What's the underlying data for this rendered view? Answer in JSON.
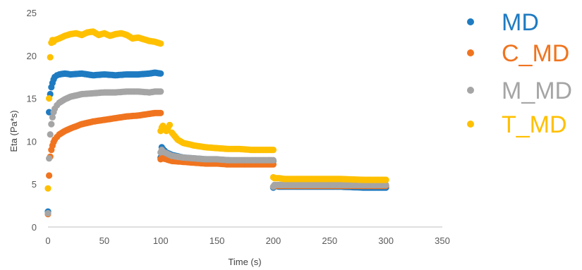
{
  "chart_data": {
    "type": "scatter",
    "title": "",
    "xlabel": "Time (s)",
    "ylabel": "Eta (Pa*s)",
    "xlim": [
      0,
      350
    ],
    "ylim": [
      0,
      25
    ],
    "xticks": [
      0,
      50,
      100,
      150,
      200,
      250,
      300,
      350
    ],
    "yticks": [
      0,
      5,
      10,
      15,
      20,
      25
    ],
    "x_tick_labels": [
      "0",
      "50",
      "100",
      "150",
      "200",
      "250",
      "300",
      "350"
    ],
    "y_tick_labels": [
      "0",
      "5",
      "10",
      "15",
      "20",
      "25"
    ],
    "grid": false,
    "legend_position": "right",
    "series": [
      {
        "name": "MD",
        "color": "#1F7BC1",
        "x": [
          0,
          1,
          2,
          3,
          4,
          5,
          6,
          8,
          10,
          15,
          20,
          30,
          40,
          50,
          60,
          70,
          80,
          90,
          95,
          100,
          100,
          101,
          102,
          105,
          110,
          120,
          130,
          140,
          150,
          160,
          170,
          180,
          190,
          200,
          200,
          201,
          205,
          210,
          220,
          240,
          260,
          280,
          300
        ],
        "y": [
          1.8,
          13.4,
          15.5,
          16.3,
          16.8,
          17.2,
          17.5,
          17.7,
          17.8,
          17.9,
          17.8,
          17.9,
          17.7,
          17.8,
          17.7,
          17.8,
          17.8,
          17.9,
          18.0,
          17.9,
          8.1,
          9.3,
          9.1,
          8.7,
          8.4,
          8.1,
          8.0,
          7.9,
          7.8,
          7.8,
          7.7,
          7.7,
          7.7,
          7.7,
          4.6,
          4.8,
          4.7,
          4.7,
          4.7,
          4.7,
          4.7,
          4.6,
          4.6
        ]
      },
      {
        "name": "C_MD",
        "color": "#F0741F",
        "x": [
          0,
          1,
          2,
          3,
          4,
          5,
          6,
          8,
          10,
          15,
          20,
          30,
          40,
          50,
          60,
          70,
          80,
          90,
          95,
          100,
          100,
          101,
          102,
          105,
          110,
          120,
          130,
          140,
          150,
          160,
          170,
          180,
          190,
          200,
          200,
          201,
          205,
          210,
          220,
          240,
          260,
          280,
          300
        ],
        "y": [
          1.5,
          6.0,
          8.2,
          9.0,
          9.5,
          9.9,
          10.2,
          10.5,
          10.8,
          11.2,
          11.5,
          12.0,
          12.3,
          12.5,
          12.7,
          12.9,
          13.0,
          13.2,
          13.3,
          13.3,
          7.9,
          8.1,
          8.0,
          7.9,
          7.7,
          7.6,
          7.5,
          7.4,
          7.4,
          7.3,
          7.3,
          7.3,
          7.3,
          7.3,
          4.7,
          4.8,
          4.8,
          4.8,
          4.8,
          4.8,
          4.8,
          4.8,
          4.8
        ]
      },
      {
        "name": "M_MD",
        "color": "#A5A5A5",
        "x": [
          0,
          1,
          2,
          3,
          4,
          5,
          6,
          8,
          10,
          15,
          20,
          30,
          40,
          50,
          60,
          70,
          80,
          90,
          95,
          100,
          100,
          101,
          102,
          105,
          110,
          120,
          130,
          140,
          150,
          160,
          170,
          180,
          190,
          200,
          200,
          201,
          205,
          210,
          220,
          240,
          260,
          280,
          300
        ],
        "y": [
          1.6,
          8.0,
          10.8,
          12.0,
          12.8,
          13.4,
          13.8,
          14.2,
          14.5,
          14.9,
          15.2,
          15.5,
          15.6,
          15.7,
          15.7,
          15.8,
          15.8,
          15.7,
          15.8,
          15.8,
          8.7,
          9.0,
          8.8,
          8.6,
          8.3,
          8.1,
          8.0,
          7.9,
          7.9,
          7.8,
          7.8,
          7.8,
          7.8,
          7.8,
          4.7,
          4.9,
          4.9,
          4.9,
          4.9,
          4.9,
          4.9,
          4.9,
          4.9
        ]
      },
      {
        "name": "T_MD",
        "color": "#FFC000",
        "x": [
          0,
          1,
          2,
          3,
          4,
          5,
          6,
          8,
          10,
          15,
          20,
          25,
          30,
          35,
          40,
          45,
          50,
          55,
          60,
          65,
          70,
          75,
          80,
          85,
          90,
          95,
          100,
          100,
          101,
          102,
          103,
          105,
          108,
          110,
          115,
          120,
          130,
          140,
          150,
          160,
          170,
          180,
          190,
          200,
          200,
          201,
          205,
          210,
          220,
          240,
          260,
          280,
          300
        ],
        "y": [
          4.5,
          15.0,
          19.8,
          21.5,
          21.8,
          21.6,
          21.8,
          21.9,
          22.0,
          22.3,
          22.5,
          22.6,
          22.4,
          22.7,
          22.8,
          22.4,
          22.6,
          22.3,
          22.5,
          22.6,
          22.4,
          22.0,
          22.1,
          21.9,
          21.7,
          21.6,
          21.4,
          11.2,
          11.6,
          11.8,
          11.6,
          11.2,
          11.9,
          11.0,
          10.2,
          9.8,
          9.5,
          9.3,
          9.2,
          9.1,
          9.1,
          9.0,
          9.0,
          9.0,
          5.8,
          5.7,
          5.7,
          5.6,
          5.6,
          5.6,
          5.6,
          5.5,
          5.5
        ]
      }
    ]
  }
}
